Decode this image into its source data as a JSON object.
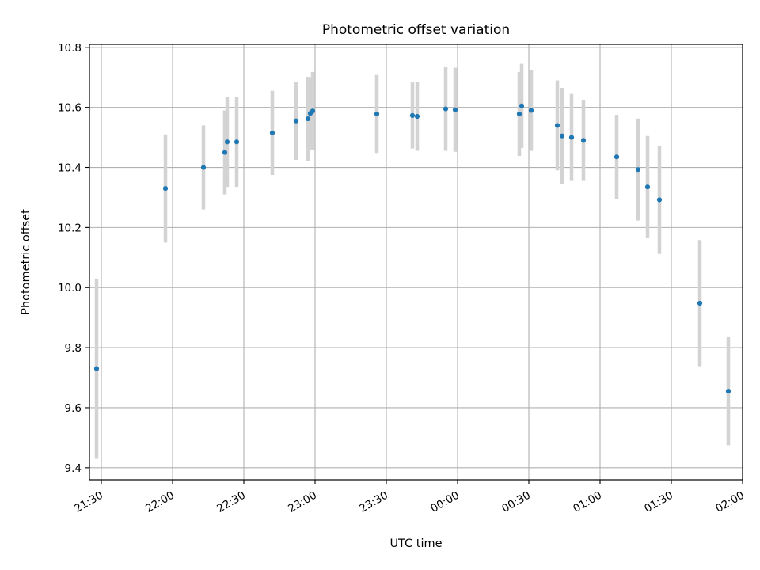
{
  "chart_data": {
    "type": "scatter",
    "title": "Photometric offset variation",
    "xlabel": "UTC time",
    "ylabel": "Photometric offset",
    "grid": true,
    "legend": "none",
    "x_is_time": true,
    "xlim": [
      "21:25",
      "02:00"
    ],
    "ylim": [
      9.36,
      10.81
    ],
    "x_ticks": [
      "21:30",
      "22:00",
      "22:30",
      "23:00",
      "23:30",
      "00:00",
      "00:30",
      "01:00",
      "01:30",
      "02:00"
    ],
    "y_ticks": [
      9.4,
      9.6,
      9.8,
      10.0,
      10.2,
      10.4,
      10.6,
      10.8
    ],
    "y_tick_labels": [
      "9.4",
      "9.6",
      "9.8",
      "10.0",
      "10.2",
      "10.4",
      "10.6",
      "10.8"
    ],
    "point_color": "#1f77b4",
    "errorbar_color": "#d3d3d3",
    "points": [
      {
        "x": "21:28",
        "y": 9.73,
        "err": 0.3
      },
      {
        "x": "21:57",
        "y": 10.33,
        "err": 0.18
      },
      {
        "x": "22:13",
        "y": 10.4,
        "err": 0.14
      },
      {
        "x": "22:22",
        "y": 10.45,
        "err": 0.14
      },
      {
        "x": "22:23",
        "y": 10.485,
        "err": 0.15
      },
      {
        "x": "22:27",
        "y": 10.485,
        "err": 0.15
      },
      {
        "x": "22:42",
        "y": 10.515,
        "err": 0.14
      },
      {
        "x": "22:52",
        "y": 10.555,
        "err": 0.13
      },
      {
        "x": "22:57",
        "y": 10.562,
        "err": 0.14
      },
      {
        "x": "22:58",
        "y": 10.58,
        "err": 0.12
      },
      {
        "x": "22:59",
        "y": 10.588,
        "err": 0.13
      },
      {
        "x": "23:26",
        "y": 10.578,
        "err": 0.13
      },
      {
        "x": "23:41",
        "y": 10.573,
        "err": 0.11
      },
      {
        "x": "23:43",
        "y": 10.57,
        "err": 0.115
      },
      {
        "x": "23:55",
        "y": 10.595,
        "err": 0.14
      },
      {
        "x": "23:59",
        "y": 10.592,
        "err": 0.14
      },
      {
        "x": "00:26",
        "y": 10.578,
        "err": 0.14
      },
      {
        "x": "00:27",
        "y": 10.605,
        "err": 0.14
      },
      {
        "x": "00:31",
        "y": 10.59,
        "err": 0.135
      },
      {
        "x": "00:42",
        "y": 10.54,
        "err": 0.15
      },
      {
        "x": "00:44",
        "y": 10.505,
        "err": 0.16
      },
      {
        "x": "00:48",
        "y": 10.5,
        "err": 0.145
      },
      {
        "x": "00:53",
        "y": 10.49,
        "err": 0.135
      },
      {
        "x": "01:07",
        "y": 10.435,
        "err": 0.14
      },
      {
        "x": "01:16",
        "y": 10.393,
        "err": 0.17
      },
      {
        "x": "01:20",
        "y": 10.335,
        "err": 0.17
      },
      {
        "x": "01:25",
        "y": 10.292,
        "err": 0.18
      },
      {
        "x": "01:42",
        "y": 9.948,
        "err": 0.21
      },
      {
        "x": "01:54",
        "y": 9.655,
        "err": 0.18
      }
    ]
  }
}
